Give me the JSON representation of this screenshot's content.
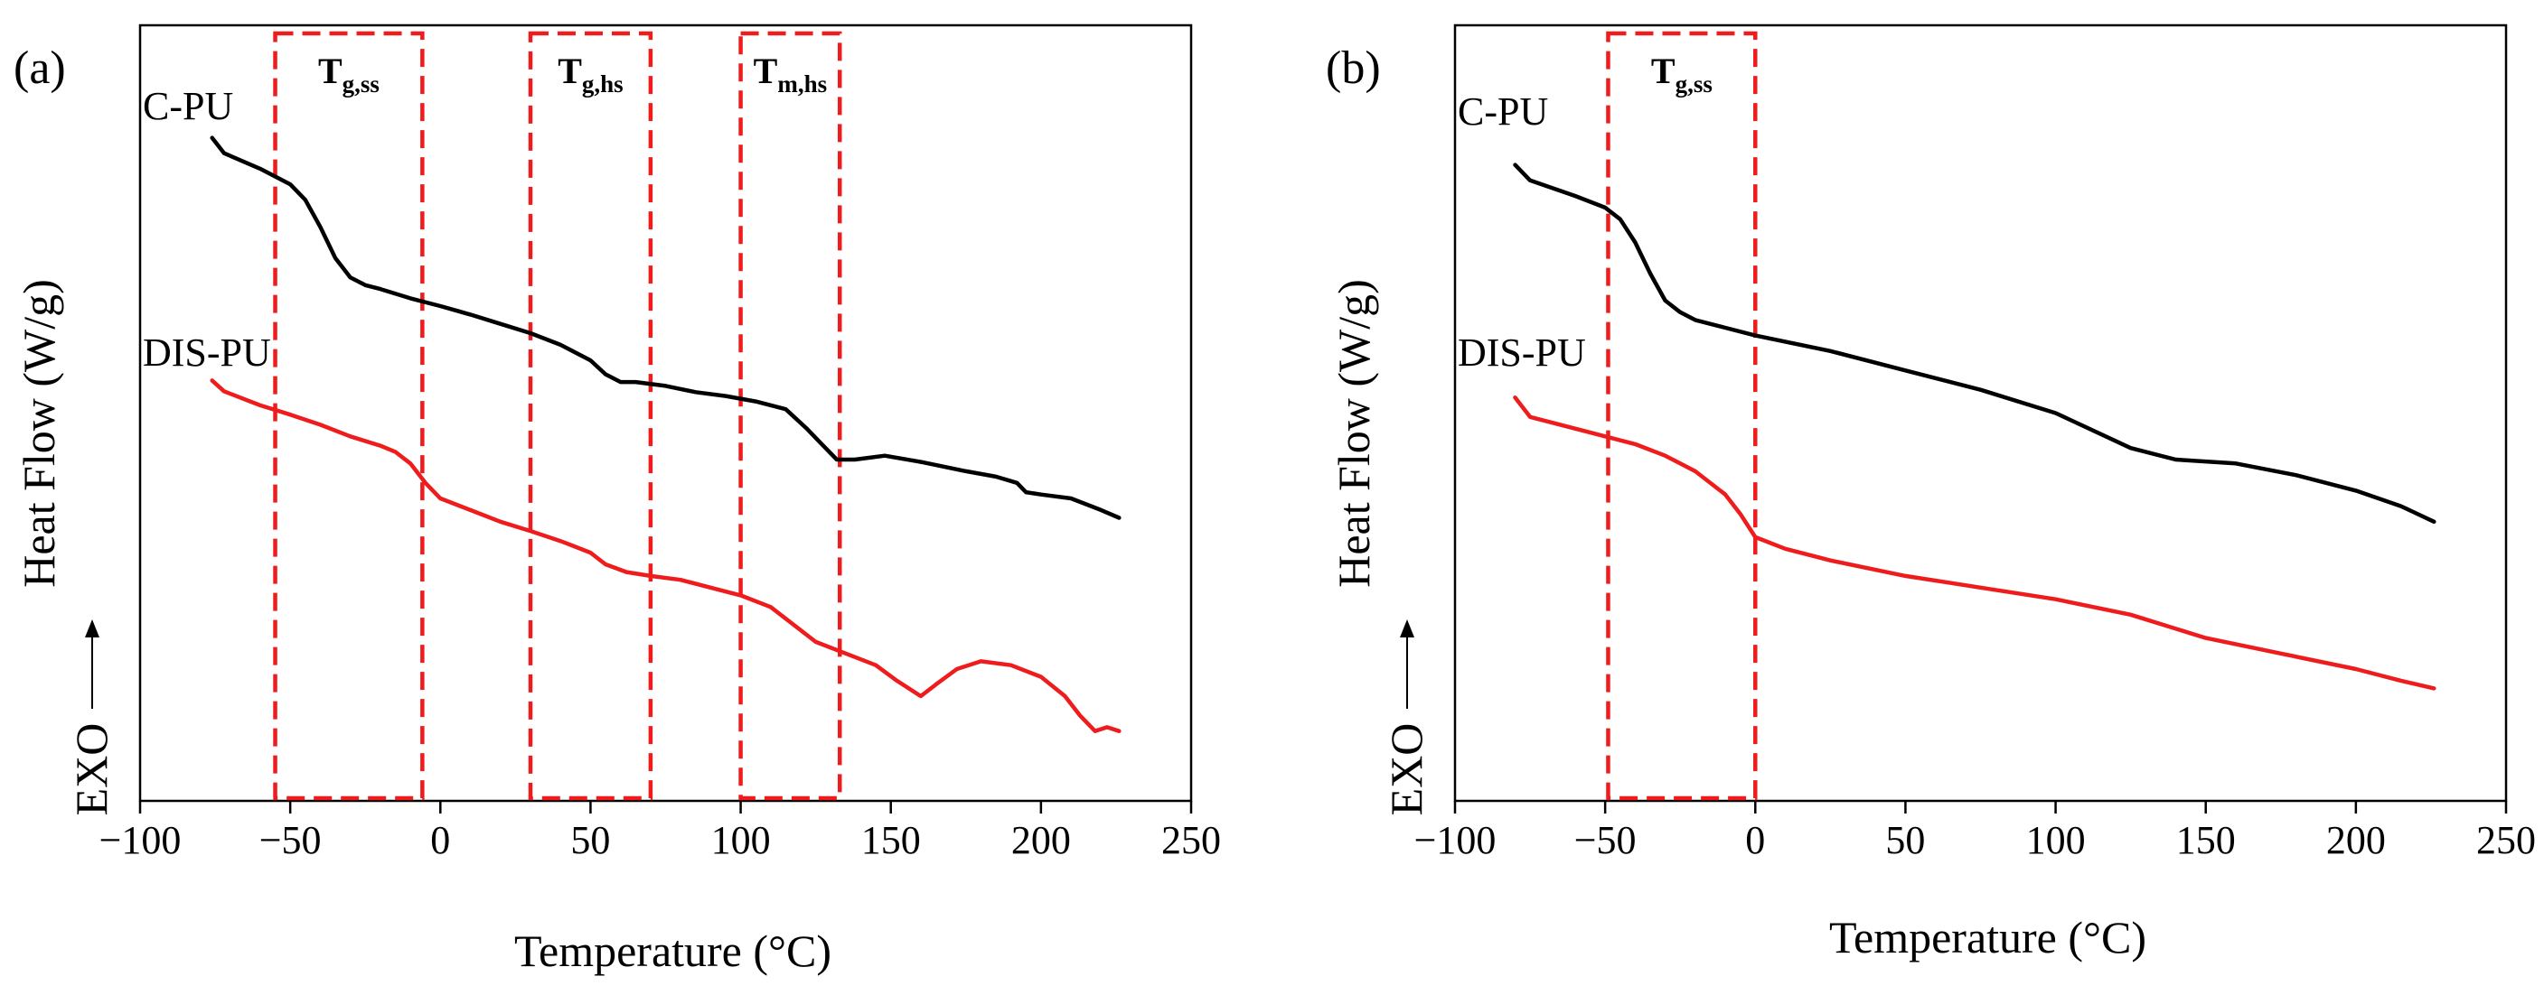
{
  "colors": {
    "c_pu": "#000000",
    "dis_pu": "#ee1c1c",
    "region_box": "#ee1c1c",
    "axes": "#000000"
  },
  "chart_data": [
    {
      "type": "line",
      "panel_label": "(a)",
      "xlabel": "Temperature (°C)",
      "ylabel": "Heat Flow (W/g)",
      "exo_label": "EXO",
      "xlim": [
        -100,
        250
      ],
      "xticks": [
        -100,
        -50,
        0,
        50,
        100,
        150,
        200,
        250
      ],
      "xtick_labels": [
        "−100",
        "−50",
        "0",
        "50",
        "100",
        "150",
        "200",
        "250"
      ],
      "ylim": [
        0,
        1
      ],
      "y_units": "arbitrary (normalized)",
      "regions": [
        {
          "id": "tg-ss",
          "label_main": "T",
          "label_sub": "g,ss",
          "x_start": -55,
          "x_end": -6
        },
        {
          "id": "tg-hs",
          "label_main": "T",
          "label_sub": "g,hs",
          "x_start": 30,
          "x_end": 70
        },
        {
          "id": "tm-hs",
          "label_main": "T",
          "label_sub": "m,hs",
          "x_start": 100,
          "x_end": 133
        }
      ],
      "series": [
        {
          "name": "C-PU",
          "color_key": "c_pu",
          "x": [
            -76,
            -72,
            -60,
            -50,
            -45,
            -40,
            -35,
            -30,
            -25,
            -20,
            -10,
            0,
            10,
            20,
            30,
            40,
            50,
            55,
            60,
            65,
            75,
            85,
            95,
            105,
            115,
            122,
            127,
            132,
            138,
            148,
            160,
            175,
            185,
            192,
            195,
            200,
            210,
            220,
            226
          ],
          "y": [
            0.855,
            0.835,
            0.815,
            0.795,
            0.775,
            0.74,
            0.7,
            0.675,
            0.665,
            0.66,
            0.648,
            0.638,
            0.627,
            0.615,
            0.603,
            0.588,
            0.568,
            0.55,
            0.54,
            0.54,
            0.535,
            0.527,
            0.522,
            0.515,
            0.505,
            0.48,
            0.46,
            0.44,
            0.44,
            0.445,
            0.437,
            0.425,
            0.418,
            0.41,
            0.398,
            0.395,
            0.39,
            0.375,
            0.365
          ]
        },
        {
          "name": "DIS-PU",
          "color_key": "dis_pu",
          "x": [
            -76,
            -72,
            -60,
            -50,
            -40,
            -30,
            -20,
            -15,
            -10,
            -5,
            0,
            10,
            20,
            30,
            40,
            50,
            55,
            62,
            70,
            80,
            90,
            100,
            110,
            120,
            125,
            135,
            145,
            152,
            160,
            165,
            172,
            180,
            190,
            200,
            208,
            213,
            218,
            222,
            226
          ],
          "y": [
            0.542,
            0.528,
            0.51,
            0.498,
            0.485,
            0.47,
            0.458,
            0.45,
            0.435,
            0.41,
            0.39,
            0.375,
            0.36,
            0.348,
            0.335,
            0.32,
            0.305,
            0.295,
            0.29,
            0.285,
            0.275,
            0.265,
            0.25,
            0.22,
            0.205,
            0.19,
            0.175,
            0.155,
            0.135,
            0.15,
            0.17,
            0.18,
            0.175,
            0.16,
            0.135,
            0.11,
            0.09,
            0.095,
            0.09
          ]
        }
      ]
    },
    {
      "type": "line",
      "panel_label": "(b)",
      "xlabel": "Temperature (°C)",
      "ylabel": "Heat Flow (W/g)",
      "exo_label": "EXO",
      "xlim": [
        -100,
        250
      ],
      "xticks": [
        -100,
        -50,
        0,
        50,
        100,
        150,
        200,
        250
      ],
      "xtick_labels": [
        "−100",
        "−50",
        "0",
        "50",
        "100",
        "150",
        "200",
        "250"
      ],
      "ylim": [
        0,
        1
      ],
      "y_units": "arbitrary (normalized)",
      "regions": [
        {
          "id": "tg-ss",
          "label_main": "T",
          "label_sub": "g,ss",
          "x_start": -49,
          "x_end": 0
        }
      ],
      "series": [
        {
          "name": "C-PU",
          "color_key": "c_pu",
          "x": [
            -80,
            -75,
            -60,
            -50,
            -45,
            -40,
            -35,
            -30,
            -25,
            -20,
            -10,
            0,
            25,
            50,
            75,
            100,
            125,
            140,
            160,
            180,
            200,
            215,
            226
          ],
          "y": [
            0.82,
            0.8,
            0.78,
            0.765,
            0.75,
            0.72,
            0.68,
            0.645,
            0.63,
            0.62,
            0.61,
            0.6,
            0.58,
            0.555,
            0.53,
            0.5,
            0.455,
            0.44,
            0.435,
            0.42,
            0.4,
            0.38,
            0.36
          ]
        },
        {
          "name": "DIS-PU",
          "color_key": "dis_pu",
          "x": [
            -80,
            -75,
            -60,
            -50,
            -40,
            -30,
            -20,
            -10,
            -5,
            0,
            10,
            25,
            50,
            75,
            100,
            125,
            150,
            175,
            200,
            215,
            226
          ],
          "y": [
            0.52,
            0.495,
            0.48,
            0.47,
            0.46,
            0.445,
            0.425,
            0.395,
            0.37,
            0.34,
            0.325,
            0.31,
            0.29,
            0.275,
            0.26,
            0.24,
            0.21,
            0.19,
            0.17,
            0.155,
            0.145
          ]
        }
      ]
    }
  ]
}
